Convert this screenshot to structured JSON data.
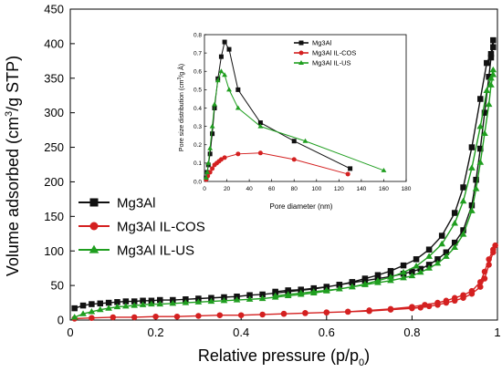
{
  "chart_data": [
    {
      "type": "line",
      "role": "main",
      "xlabel_main": "Relative pressure (p/p",
      "xlabel_sub": "0",
      "xlabel_end": ")",
      "ylabel_main": "Volume adsorbed (cm",
      "ylabel_sup": "3",
      "ylabel_end": "/g STP)",
      "xlim": [
        0,
        1
      ],
      "ylim": [
        0,
        450
      ],
      "xticks": [
        0,
        0.2,
        0.4,
        0.6,
        0.8,
        1
      ],
      "xtick_labels": [
        "0",
        "0.2",
        "0.4",
        "0.6",
        "0.8",
        "1"
      ],
      "yticks": [
        0,
        50,
        100,
        150,
        200,
        250,
        300,
        350,
        400,
        450
      ],
      "ytick_labels": [
        "0",
        "50",
        "100",
        "150",
        "200",
        "250",
        "300",
        "350",
        "400",
        "450"
      ],
      "grid": false,
      "legend_position": "left-middle",
      "series": [
        {
          "name": "Mg3Al",
          "color": "#111111",
          "marker": "square",
          "values": [
            [
              0.01,
              17
            ],
            [
              0.03,
              21
            ],
            [
              0.05,
              23
            ],
            [
              0.07,
              24
            ],
            [
              0.09,
              25
            ],
            [
              0.11,
              26
            ],
            [
              0.13,
              27
            ],
            [
              0.15,
              27
            ],
            [
              0.17,
              28
            ],
            [
              0.19,
              28
            ],
            [
              0.21,
              29
            ],
            [
              0.24,
              29
            ],
            [
              0.27,
              30
            ],
            [
              0.3,
              31
            ],
            [
              0.33,
              32
            ],
            [
              0.36,
              33
            ],
            [
              0.39,
              34
            ],
            [
              0.42,
              36
            ],
            [
              0.45,
              37
            ],
            [
              0.48,
              39
            ],
            [
              0.51,
              41
            ],
            [
              0.54,
              43
            ],
            [
              0.57,
              45
            ],
            [
              0.6,
              48
            ],
            [
              0.63,
              51
            ],
            [
              0.66,
              55
            ],
            [
              0.69,
              60
            ],
            [
              0.72,
              65
            ],
            [
              0.75,
              71
            ],
            [
              0.78,
              79
            ],
            [
              0.81,
              88
            ],
            [
              0.84,
              102
            ],
            [
              0.87,
              122
            ],
            [
              0.9,
              155
            ],
            [
              0.92,
              192
            ],
            [
              0.94,
              250
            ],
            [
              0.96,
              320
            ],
            [
              0.975,
              372
            ],
            [
              0.985,
              385
            ],
            [
              0.99,
              405
            ],
            [
              0.99,
              395
            ],
            [
              0.985,
              380
            ],
            [
              0.98,
              352
            ],
            [
              0.97,
              300
            ],
            [
              0.96,
              248
            ],
            [
              0.95,
              203
            ],
            [
              0.94,
              166
            ],
            [
              0.92,
              130
            ],
            [
              0.9,
              112
            ],
            [
              0.88,
              98
            ],
            [
              0.86,
              88
            ],
            [
              0.84,
              80
            ],
            [
              0.82,
              74
            ],
            [
              0.8,
              70
            ],
            [
              0.78,
              67
            ],
            [
              0.75,
              63
            ],
            [
              0.72,
              60
            ],
            [
              0.69,
              57
            ],
            [
              0.66,
              54
            ],
            [
              0.63,
              51
            ],
            [
              0.6,
              48
            ],
            [
              0.57,
              46
            ],
            [
              0.54,
              44
            ],
            [
              0.51,
              43
            ],
            [
              0.48,
              41
            ]
          ]
        },
        {
          "name": "Mg3Al IL-COS",
          "color": "#d42020",
          "marker": "circle",
          "values": [
            [
              0.01,
              2
            ],
            [
              0.05,
              3
            ],
            [
              0.1,
              4
            ],
            [
              0.15,
              4
            ],
            [
              0.2,
              5
            ],
            [
              0.25,
              5
            ],
            [
              0.3,
              6
            ],
            [
              0.35,
              7
            ],
            [
              0.4,
              7
            ],
            [
              0.45,
              8
            ],
            [
              0.5,
              9
            ],
            [
              0.55,
              10
            ],
            [
              0.6,
              11
            ],
            [
              0.65,
              12
            ],
            [
              0.7,
              14
            ],
            [
              0.75,
              16
            ],
            [
              0.8,
              19
            ],
            [
              0.83,
              22
            ],
            [
              0.86,
              25
            ],
            [
              0.88,
              28
            ],
            [
              0.9,
              32
            ],
            [
              0.92,
              36
            ],
            [
              0.94,
              42
            ],
            [
              0.96,
              55
            ],
            [
              0.97,
              70
            ],
            [
              0.98,
              88
            ],
            [
              0.99,
              102
            ],
            [
              0.995,
              108
            ],
            [
              0.99,
              98
            ],
            [
              0.98,
              80
            ],
            [
              0.97,
              60
            ],
            [
              0.96,
              48
            ],
            [
              0.94,
              38
            ],
            [
              0.92,
              32
            ],
            [
              0.9,
              28
            ],
            [
              0.88,
              25
            ],
            [
              0.86,
              22
            ],
            [
              0.84,
              20
            ],
            [
              0.82,
              18
            ],
            [
              0.8,
              17
            ],
            [
              0.75,
              15
            ],
            [
              0.7,
              13
            ],
            [
              0.65,
              12
            ],
            [
              0.6,
              11
            ],
            [
              0.55,
              10
            ],
            [
              0.5,
              9
            ]
          ]
        },
        {
          "name": "Mg3Al IL-US",
          "color": "#1f9e1f",
          "marker": "triangle",
          "values": [
            [
              0.01,
              4
            ],
            [
              0.03,
              9
            ],
            [
              0.05,
              12
            ],
            [
              0.07,
              15
            ],
            [
              0.09,
              17
            ],
            [
              0.11,
              19
            ],
            [
              0.13,
              20
            ],
            [
              0.15,
              21
            ],
            [
              0.17,
              22
            ],
            [
              0.19,
              23
            ],
            [
              0.21,
              23
            ],
            [
              0.24,
              24
            ],
            [
              0.27,
              25
            ],
            [
              0.3,
              26
            ],
            [
              0.33,
              27
            ],
            [
              0.36,
              28
            ],
            [
              0.39,
              29
            ],
            [
              0.42,
              30
            ],
            [
              0.45,
              31
            ],
            [
              0.48,
              33
            ],
            [
              0.51,
              35
            ],
            [
              0.54,
              37
            ],
            [
              0.57,
              39
            ],
            [
              0.6,
              42
            ],
            [
              0.63,
              45
            ],
            [
              0.66,
              48
            ],
            [
              0.69,
              52
            ],
            [
              0.72,
              57
            ],
            [
              0.75,
              62
            ],
            [
              0.78,
              69
            ],
            [
              0.81,
              78
            ],
            [
              0.84,
              92
            ],
            [
              0.87,
              110
            ],
            [
              0.9,
              140
            ],
            [
              0.92,
              172
            ],
            [
              0.94,
              220
            ],
            [
              0.96,
              280
            ],
            [
              0.975,
              332
            ],
            [
              0.985,
              350
            ],
            [
              0.99,
              362
            ],
            [
              0.99,
              355
            ],
            [
              0.985,
              340
            ],
            [
              0.98,
              312
            ],
            [
              0.97,
              270
            ],
            [
              0.96,
              228
            ],
            [
              0.95,
              190
            ],
            [
              0.94,
              158
            ],
            [
              0.92,
              124
            ],
            [
              0.9,
              105
            ],
            [
              0.88,
              92
            ],
            [
              0.86,
              82
            ],
            [
              0.84,
              75
            ],
            [
              0.82,
              69
            ],
            [
              0.8,
              64
            ],
            [
              0.78,
              61
            ],
            [
              0.75,
              57
            ],
            [
              0.72,
              54
            ],
            [
              0.69,
              51
            ],
            [
              0.66,
              48
            ],
            [
              0.63,
              45
            ],
            [
              0.6,
              43
            ],
            [
              0.57,
              41
            ],
            [
              0.54,
              39
            ],
            [
              0.51,
              37
            ],
            [
              0.48,
              35
            ]
          ]
        }
      ]
    },
    {
      "type": "line",
      "role": "inset",
      "xlabel": "Pore diameter (nm)",
      "ylabel_main": "Pore size distribution (cm",
      "ylabel_sup": "3",
      "ylabel_end": "/g Å)",
      "xlim": [
        0,
        180
      ],
      "ylim": [
        0,
        0.8
      ],
      "xticks": [
        0,
        20,
        40,
        60,
        80,
        100,
        120,
        140,
        160,
        180
      ],
      "xtick_labels": [
        "0",
        "20",
        "40",
        "60",
        "80",
        "100",
        "120",
        "140",
        "160",
        "180"
      ],
      "yticks": [
        0,
        0.1,
        0.2,
        0.3,
        0.4,
        0.5,
        0.6,
        0.7,
        0.8
      ],
      "ytick_labels": [
        "0.0",
        "0.1",
        "0.2",
        "0.3",
        "0.4",
        "0.5",
        "0.6",
        "0.7",
        "0.8"
      ],
      "grid": false,
      "legend_position": "top-right",
      "series": [
        {
          "name": "Mg3Al",
          "color": "#111111",
          "marker": "square",
          "values": [
            [
              1.5,
              0.02
            ],
            [
              2.5,
              0.05
            ],
            [
              3.5,
              0.09
            ],
            [
              5,
              0.15
            ],
            [
              7,
              0.26
            ],
            [
              9,
              0.4
            ],
            [
              12,
              0.56
            ],
            [
              15,
              0.68
            ],
            [
              18,
              0.76
            ],
            [
              22,
              0.72
            ],
            [
              30,
              0.5
            ],
            [
              50,
              0.32
            ],
            [
              80,
              0.22
            ],
            [
              130,
              0.07
            ]
          ]
        },
        {
          "name": "Mg3Al IL-COS",
          "color": "#d42020",
          "marker": "circle",
          "values": [
            [
              1.5,
              0.01
            ],
            [
              3,
              0.03
            ],
            [
              5,
              0.05
            ],
            [
              7,
              0.07
            ],
            [
              9,
              0.09
            ],
            [
              11,
              0.1
            ],
            [
              13,
              0.11
            ],
            [
              15,
              0.12
            ],
            [
              18,
              0.13
            ],
            [
              30,
              0.15
            ],
            [
              50,
              0.155
            ],
            [
              80,
              0.12
            ],
            [
              128,
              0.04
            ]
          ]
        },
        {
          "name": "Mg3Al IL-US",
          "color": "#1f9e1f",
          "marker": "triangle",
          "values": [
            [
              1.5,
              0.02
            ],
            [
              2.5,
              0.05
            ],
            [
              3.5,
              0.1
            ],
            [
              5,
              0.18
            ],
            [
              7,
              0.3
            ],
            [
              9,
              0.42
            ],
            [
              12,
              0.55
            ],
            [
              15,
              0.6
            ],
            [
              18,
              0.58
            ],
            [
              22,
              0.5
            ],
            [
              30,
              0.4
            ],
            [
              50,
              0.3
            ],
            [
              90,
              0.22
            ],
            [
              160,
              0.06
            ]
          ]
        }
      ]
    }
  ]
}
